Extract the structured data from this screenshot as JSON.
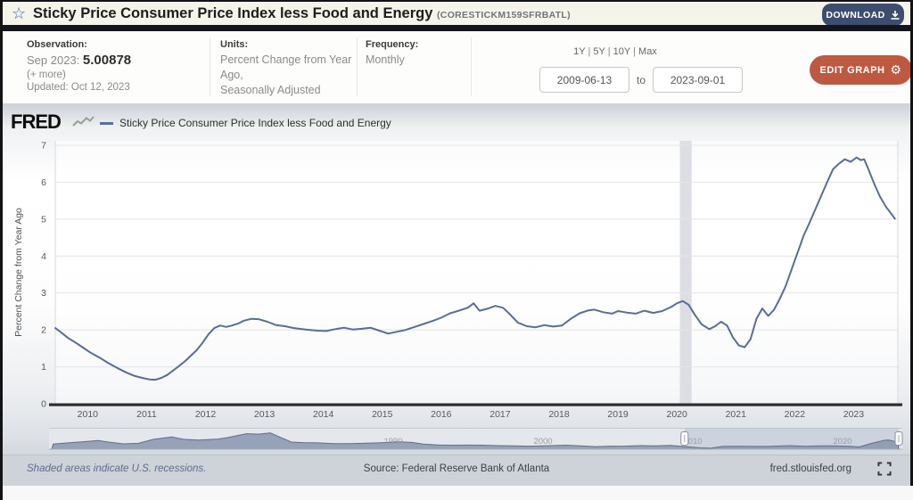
{
  "header": {
    "title": "Sticky Price Consumer Price Index less Food and Energy",
    "series_id": "(CORESTICKM159SFRBATL)",
    "download_label": "DOWNLOAD",
    "star_icon": "☆"
  },
  "controls": {
    "observation": {
      "label": "Observation:",
      "date": "Sep 2023:",
      "value": "5.00878",
      "more": "(+ more)",
      "updated": "Updated: Oct 12, 2023"
    },
    "units": {
      "label": "Units:",
      "line1": "Percent Change from Year Ago,",
      "line2": "Seasonally Adjusted"
    },
    "frequency": {
      "label": "Frequency:",
      "value": "Monthly"
    },
    "range_presets": [
      "1Y",
      "5Y",
      "10Y",
      "Max"
    ],
    "preset_separator": " | ",
    "date_from": "2009-06-13",
    "date_to": "2023-09-01",
    "to_label": "to",
    "edit_graph_label": "EDIT GRAPH",
    "gear_icon": "⚙"
  },
  "legend": {
    "brand": "FRED",
    "series_label": "Sticky Price Consumer Price Index less Food and Energy"
  },
  "chart_data": {
    "type": "line",
    "title": "Sticky Price Consumer Price Index less Food and Energy",
    "ylabel": "Percent Change from Year Ago",
    "xlabel": "",
    "x_range": [
      2009.45,
      2023.75
    ],
    "ylim": [
      0,
      7
    ],
    "y_ticks": [
      0,
      1,
      2,
      3,
      4,
      5,
      6,
      7
    ],
    "x_ticks": [
      2010,
      2011,
      2012,
      2013,
      2014,
      2015,
      2016,
      2017,
      2018,
      2019,
      2020,
      2021,
      2022,
      2023
    ],
    "grid": "horizontal",
    "line_color": "#5a6d96",
    "recession_band": [
      2020.05,
      2020.25
    ],
    "series": [
      {
        "name": "Sticky Price Consumer Price Index less Food and Energy",
        "points": [
          [
            2009.45,
            2.05
          ],
          [
            2009.55,
            1.93
          ],
          [
            2009.67,
            1.78
          ],
          [
            2009.8,
            1.65
          ],
          [
            2009.92,
            1.52
          ],
          [
            2010.05,
            1.38
          ],
          [
            2010.2,
            1.25
          ],
          [
            2010.35,
            1.1
          ],
          [
            2010.5,
            0.97
          ],
          [
            2010.65,
            0.85
          ],
          [
            2010.8,
            0.75
          ],
          [
            2010.95,
            0.69
          ],
          [
            2011.05,
            0.66
          ],
          [
            2011.15,
            0.65
          ],
          [
            2011.25,
            0.7
          ],
          [
            2011.35,
            0.78
          ],
          [
            2011.45,
            0.9
          ],
          [
            2011.55,
            1.02
          ],
          [
            2011.65,
            1.15
          ],
          [
            2011.75,
            1.3
          ],
          [
            2011.85,
            1.45
          ],
          [
            2011.95,
            1.65
          ],
          [
            2012.05,
            1.88
          ],
          [
            2012.15,
            2.05
          ],
          [
            2012.25,
            2.12
          ],
          [
            2012.35,
            2.08
          ],
          [
            2012.45,
            2.12
          ],
          [
            2012.55,
            2.17
          ],
          [
            2012.65,
            2.25
          ],
          [
            2012.78,
            2.3
          ],
          [
            2012.9,
            2.29
          ],
          [
            2013.05,
            2.22
          ],
          [
            2013.2,
            2.13
          ],
          [
            2013.35,
            2.1
          ],
          [
            2013.5,
            2.05
          ],
          [
            2013.7,
            2.01
          ],
          [
            2013.9,
            1.98
          ],
          [
            2014.05,
            1.97
          ],
          [
            2014.2,
            2.02
          ],
          [
            2014.35,
            2.06
          ],
          [
            2014.5,
            2.01
          ],
          [
            2014.65,
            2.03
          ],
          [
            2014.8,
            2.06
          ],
          [
            2014.95,
            1.98
          ],
          [
            2015.1,
            1.9
          ],
          [
            2015.25,
            1.95
          ],
          [
            2015.4,
            2.0
          ],
          [
            2015.55,
            2.08
          ],
          [
            2015.7,
            2.16
          ],
          [
            2015.85,
            2.24
          ],
          [
            2016.0,
            2.33
          ],
          [
            2016.15,
            2.45
          ],
          [
            2016.3,
            2.52
          ],
          [
            2016.45,
            2.6
          ],
          [
            2016.55,
            2.72
          ],
          [
            2016.65,
            2.52
          ],
          [
            2016.8,
            2.58
          ],
          [
            2016.92,
            2.65
          ],
          [
            2017.05,
            2.6
          ],
          [
            2017.15,
            2.45
          ],
          [
            2017.3,
            2.2
          ],
          [
            2017.45,
            2.1
          ],
          [
            2017.6,
            2.07
          ],
          [
            2017.75,
            2.13
          ],
          [
            2017.9,
            2.09
          ],
          [
            2018.05,
            2.12
          ],
          [
            2018.2,
            2.3
          ],
          [
            2018.35,
            2.45
          ],
          [
            2018.5,
            2.53
          ],
          [
            2018.6,
            2.55
          ],
          [
            2018.75,
            2.48
          ],
          [
            2018.9,
            2.44
          ],
          [
            2019.0,
            2.51
          ],
          [
            2019.15,
            2.47
          ],
          [
            2019.3,
            2.44
          ],
          [
            2019.45,
            2.52
          ],
          [
            2019.6,
            2.46
          ],
          [
            2019.75,
            2.51
          ],
          [
            2019.9,
            2.62
          ],
          [
            2020.0,
            2.72
          ],
          [
            2020.1,
            2.78
          ],
          [
            2020.2,
            2.68
          ],
          [
            2020.3,
            2.42
          ],
          [
            2020.42,
            2.15
          ],
          [
            2020.55,
            2.02
          ],
          [
            2020.65,
            2.1
          ],
          [
            2020.75,
            2.22
          ],
          [
            2020.85,
            2.12
          ],
          [
            2020.95,
            1.8
          ],
          [
            2021.05,
            1.58
          ],
          [
            2021.15,
            1.53
          ],
          [
            2021.25,
            1.75
          ],
          [
            2021.35,
            2.3
          ],
          [
            2021.45,
            2.58
          ],
          [
            2021.55,
            2.38
          ],
          [
            2021.65,
            2.55
          ],
          [
            2021.75,
            2.85
          ],
          [
            2021.85,
            3.2
          ],
          [
            2021.95,
            3.65
          ],
          [
            2022.05,
            4.1
          ],
          [
            2022.15,
            4.55
          ],
          [
            2022.25,
            4.9
          ],
          [
            2022.4,
            5.45
          ],
          [
            2022.55,
            6.0
          ],
          [
            2022.65,
            6.35
          ],
          [
            2022.75,
            6.5
          ],
          [
            2022.85,
            6.62
          ],
          [
            2022.95,
            6.55
          ],
          [
            2023.05,
            6.67
          ],
          [
            2023.12,
            6.6
          ],
          [
            2023.18,
            6.62
          ],
          [
            2023.25,
            6.35
          ],
          [
            2023.35,
            5.95
          ],
          [
            2023.45,
            5.6
          ],
          [
            2023.55,
            5.33
          ],
          [
            2023.65,
            5.12
          ],
          [
            2023.7,
            5.01
          ]
        ]
      }
    ],
    "overview": {
      "x_range": [
        1967.2,
        2023.75
      ],
      "ylim": [
        0,
        13
      ],
      "selection": [
        2009.45,
        2023.75
      ],
      "ticks": [
        1990,
        2000,
        2010,
        2020
      ],
      "points": [
        [
          1967.3,
          3.8
        ],
        [
          1968.5,
          4.8
        ],
        [
          1969.5,
          5.6
        ],
        [
          1970.3,
          6.3
        ],
        [
          1971,
          5.2
        ],
        [
          1972,
          3.9
        ],
        [
          1973,
          4.3
        ],
        [
          1974,
          7.2
        ],
        [
          1975.2,
          9.0
        ],
        [
          1976,
          7.2
        ],
        [
          1977,
          6.6
        ],
        [
          1978.3,
          7.4
        ],
        [
          1979,
          8.6
        ],
        [
          1980.2,
          11.3
        ],
        [
          1981,
          11.0
        ],
        [
          1981.8,
          11.8
        ],
        [
          1982.5,
          8.5
        ],
        [
          1983.2,
          5.2
        ],
        [
          1984,
          4.8
        ],
        [
          1985,
          4.6
        ],
        [
          1986,
          4.1
        ],
        [
          1987,
          4.0
        ],
        [
          1988,
          4.3
        ],
        [
          1989,
          4.6
        ],
        [
          1990.5,
          5.3
        ],
        [
          1991.3,
          4.9
        ],
        [
          1992,
          3.7
        ],
        [
          1993,
          3.1
        ],
        [
          1994,
          2.9
        ],
        [
          1995,
          3.0
        ],
        [
          1996,
          2.9
        ],
        [
          1997,
          2.6
        ],
        [
          1998,
          2.4
        ],
        [
          1999,
          2.2
        ],
        [
          2000.5,
          2.6
        ],
        [
          2001.5,
          2.9
        ],
        [
          2002.5,
          2.4
        ],
        [
          2003.5,
          1.9
        ],
        [
          2004.5,
          2.2
        ],
        [
          2005.5,
          2.3
        ],
        [
          2006.5,
          2.6
        ],
        [
          2007.5,
          2.5
        ],
        [
          2008.5,
          2.8
        ],
        [
          2009.5,
          1.9
        ],
        [
          2010.5,
          1.0
        ],
        [
          2011.2,
          0.7
        ],
        [
          2012,
          2.0
        ],
        [
          2013,
          2.1
        ],
        [
          2014,
          2.0
        ],
        [
          2015,
          2.0
        ],
        [
          2016.5,
          2.6
        ],
        [
          2017.5,
          2.1
        ],
        [
          2018.5,
          2.5
        ],
        [
          2019.5,
          2.5
        ],
        [
          2020.5,
          2.1
        ],
        [
          2021.1,
          1.6
        ],
        [
          2022,
          4.5
        ],
        [
          2022.8,
          6.5
        ],
        [
          2023.1,
          6.6
        ],
        [
          2023.7,
          5.0
        ]
      ]
    }
  },
  "footer": {
    "note": "Shaded areas indicate U.S. recessions.",
    "source": "Source: Federal Reserve Bank of Atlanta",
    "site": "fred.stlouisfed.org"
  }
}
